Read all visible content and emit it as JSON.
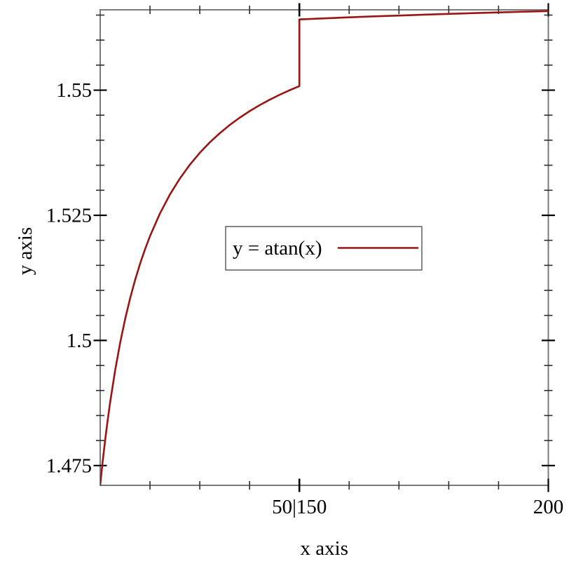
{
  "chart_data": {
    "type": "line",
    "title": "",
    "xlabel": "x axis",
    "ylabel": "y axis",
    "grid": false,
    "legend_position": "center",
    "x_axis": {
      "range": [
        10,
        200
      ],
      "transform": "collapse",
      "collapsed_interval": [
        50,
        150
      ],
      "major_ticks": [
        {
          "x": 50,
          "label": "50|150"
        },
        {
          "x": 200,
          "label": "200"
        }
      ],
      "minor_ticks": [
        20,
        30,
        40,
        160,
        170,
        180,
        190
      ]
    },
    "y_axis": {
      "range": [
        1.47105,
        1.56605
      ],
      "major_ticks": [
        {
          "y": 1.475,
          "label": "1.475"
        },
        {
          "y": 1.5,
          "label": "1.5"
        },
        {
          "y": 1.525,
          "label": "1.525"
        },
        {
          "y": 1.55,
          "label": "1.55"
        }
      ],
      "minor_ticks": [
        1.48,
        1.485,
        1.49,
        1.495,
        1.505,
        1.51,
        1.515,
        1.52,
        1.53,
        1.535,
        1.54,
        1.545,
        1.555,
        1.56,
        1.565
      ]
    },
    "legend": {
      "label": "y = atan(x)"
    },
    "colors": {
      "line": "#9b1414",
      "border": "#7b7b7b",
      "minor_tick": "#2e2e2e",
      "major_tick": "#000000",
      "legend_border": "#5f5f5f",
      "text": "#000000"
    },
    "series": [
      {
        "name": "y = atan(x)",
        "color": "#9b1414",
        "points": [
          [
            10,
            1.47113
          ],
          [
            10.5,
            1.47585
          ],
          [
            11,
            1.48014
          ],
          [
            11.5,
            1.48406
          ],
          [
            12,
            1.48766
          ],
          [
            13,
            1.49402
          ],
          [
            14,
            1.49949
          ],
          [
            15,
            1.50423
          ],
          [
            16,
            1.50838
          ],
          [
            17,
            1.51204
          ],
          [
            18,
            1.5153
          ],
          [
            19,
            1.51821
          ],
          [
            20,
            1.52084
          ],
          [
            22,
            1.52537
          ],
          [
            24,
            1.52915
          ],
          [
            26,
            1.53235
          ],
          [
            28,
            1.5351
          ],
          [
            30,
            1.53748
          ],
          [
            32,
            1.53956
          ],
          [
            34,
            1.54139
          ],
          [
            36,
            1.54303
          ],
          [
            38,
            1.54449
          ],
          [
            40,
            1.5458
          ],
          [
            42,
            1.54699
          ],
          [
            44,
            1.54807
          ],
          [
            46,
            1.54906
          ],
          [
            48,
            1.54997
          ],
          [
            50,
            1.5508
          ],
          [
            60,
            1.55413
          ],
          [
            70,
            1.55651
          ],
          [
            80,
            1.5583
          ],
          [
            90,
            1.55969
          ],
          [
            100,
            1.5608
          ],
          [
            110,
            1.56171
          ],
          [
            120,
            1.56246
          ],
          [
            130,
            1.5631
          ],
          [
            140,
            1.56365
          ],
          [
            150,
            1.56413
          ],
          [
            155,
            1.56434
          ],
          [
            160,
            1.56455
          ],
          [
            165,
            1.56474
          ],
          [
            170,
            1.56491
          ],
          [
            175,
            1.56508
          ],
          [
            180,
            1.56524
          ],
          [
            185,
            1.56539
          ],
          [
            190,
            1.56553
          ],
          [
            195,
            1.56567
          ],
          [
            200,
            1.5658
          ]
        ]
      }
    ]
  }
}
